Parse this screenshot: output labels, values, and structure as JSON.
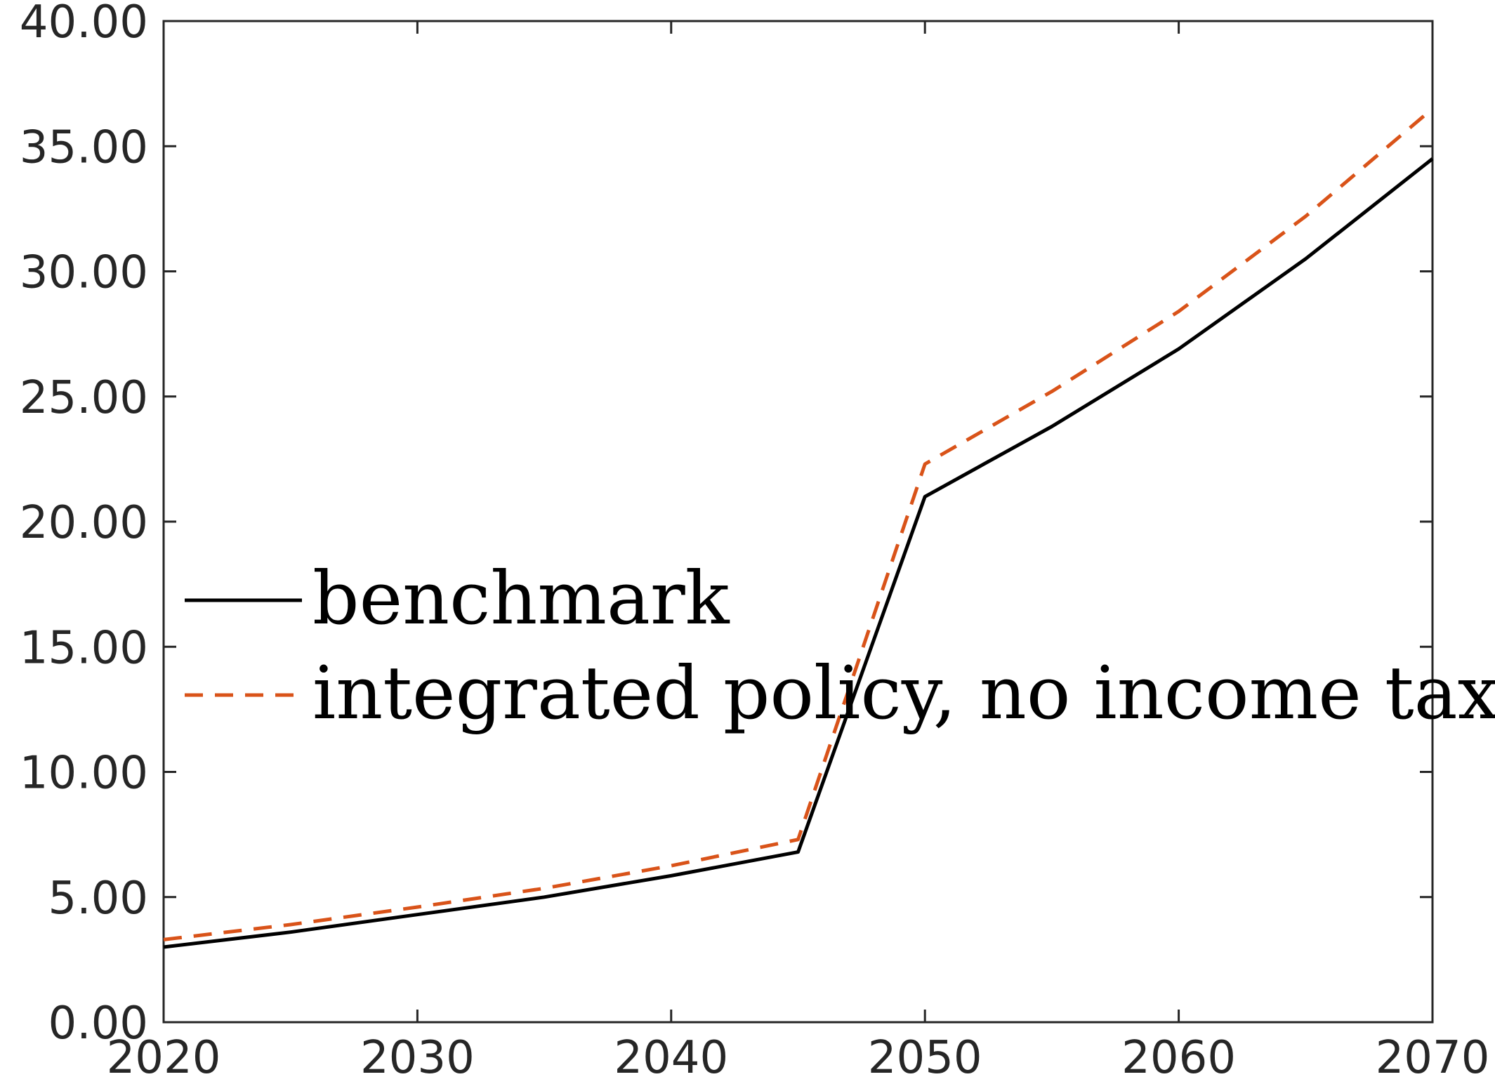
{
  "chart_data": {
    "type": "line",
    "title": "",
    "xlabel": "",
    "ylabel": "",
    "xlim": [
      2020,
      2070
    ],
    "ylim": [
      0,
      40
    ],
    "x_ticks": [
      2020,
      2030,
      2040,
      2050,
      2060,
      2070
    ],
    "x_tick_labels": [
      "2020",
      "2030",
      "2040",
      "2050",
      "2060",
      "2070"
    ],
    "y_ticks": [
      0,
      5,
      10,
      15,
      20,
      25,
      30,
      35,
      40
    ],
    "y_tick_labels": [
      "0.00",
      "5.00",
      "10.00",
      "15.00",
      "20.00",
      "25.00",
      "30.00",
      "35.00",
      "40.00"
    ],
    "grid": false,
    "legend_position": "center-left",
    "x": [
      2020,
      2025,
      2030,
      2035,
      2040,
      2045,
      2050,
      2055,
      2060,
      2065,
      2070
    ],
    "series": [
      {
        "name": "benchmark",
        "color": "#000000",
        "style": "solid",
        "values": [
          3.0,
          3.6,
          4.3,
          5.0,
          5.85,
          6.8,
          21.0,
          23.8,
          26.9,
          30.5,
          34.5
        ]
      },
      {
        "name": "integrated policy, no income tax",
        "color": "#D95319",
        "style": "dashed",
        "values": [
          3.3,
          3.9,
          4.6,
          5.35,
          6.25,
          7.3,
          22.3,
          25.2,
          28.4,
          32.2,
          36.5
        ]
      }
    ]
  }
}
